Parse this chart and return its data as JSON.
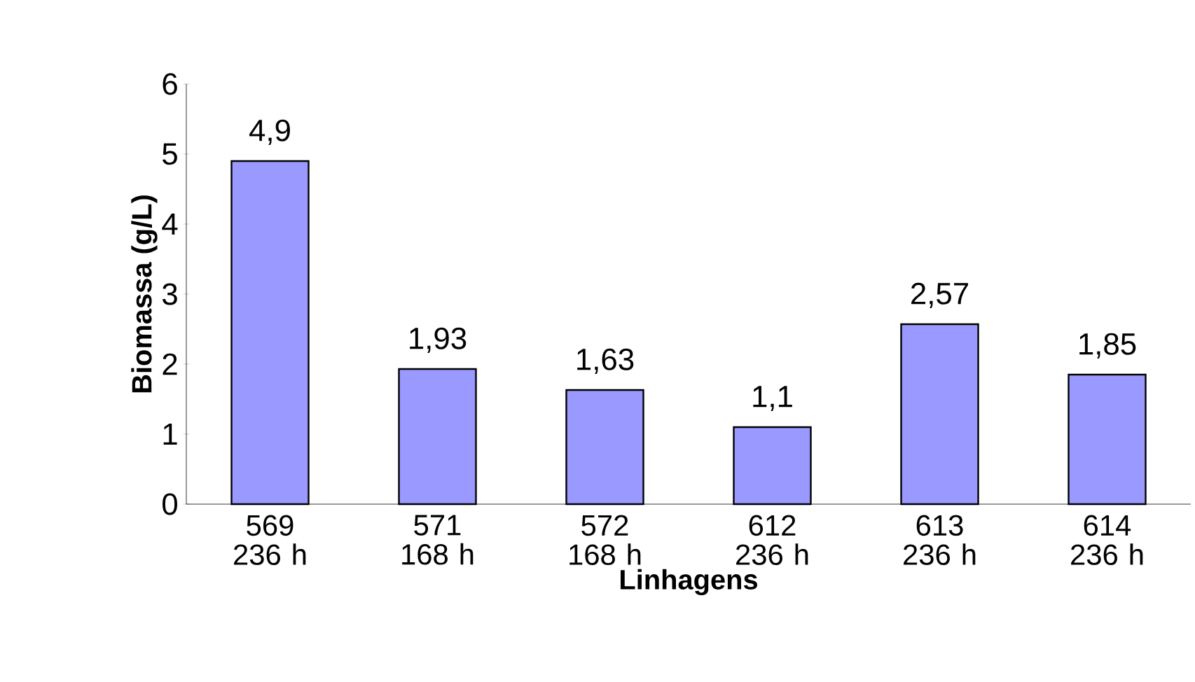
{
  "chart_data": {
    "type": "bar",
    "xlabel": "Linhagens",
    "ylabel": "Biomassa (g/L)",
    "categories": [
      "569 236 h",
      "571 168 h",
      "572 168 h",
      "612 236 h",
      "613 236 h",
      "614 236 h"
    ],
    "values": [
      4.9,
      1.93,
      1.63,
      1.1,
      2.57,
      1.85
    ],
    "value_labels": [
      "4,9",
      "1,93",
      "1,63",
      "1,1",
      "2,57",
      "1,85"
    ],
    "color": "#9999ff",
    "ylim": [
      0,
      6
    ],
    "yticks": [
      0,
      1,
      2,
      3,
      4,
      5,
      6
    ],
    "grid": false
  }
}
